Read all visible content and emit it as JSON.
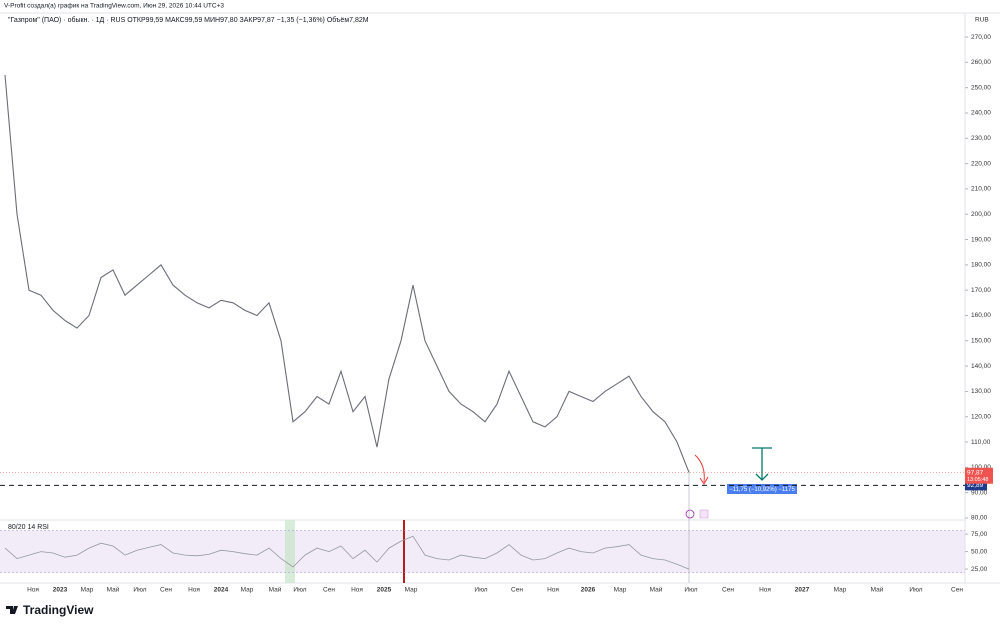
{
  "header": {
    "attribution": "V-Profit создал(а) график на TradingView.com, Июн 29, 2026 10:44 UTC+3"
  },
  "footer": {
    "brand": "TradingView"
  },
  "chart_data": [
    {
      "type": "line",
      "title": "\"Газпром\" (ПАО) · обыкн. · 1Д · RUS  ОТКР99,59  МАКС99,59  МИН97,80  ЗАКР97,87  −1,35 (−1,36%)  Объём7,82M",
      "unit": "RUB",
      "color": "#6a6d78",
      "values": [
        255,
        200,
        170,
        168,
        162,
        158,
        155,
        160,
        175,
        178,
        168,
        172,
        176,
        180,
        172,
        168,
        165,
        163,
        166,
        165,
        162,
        160,
        165,
        150,
        118,
        122,
        128,
        125,
        138,
        122,
        128,
        108,
        135,
        150,
        172,
        150,
        140,
        130,
        125,
        122,
        118,
        125,
        138,
        128,
        118,
        116,
        120,
        130,
        128,
        126,
        130,
        133,
        136,
        128,
        122,
        118,
        110,
        98
      ],
      "ylim": [
        79.2,
        279.5
      ],
      "yticks": [
        {
          "value": 80,
          "label": "80,00"
        },
        {
          "value": 90,
          "label": "90,00"
        },
        {
          "value": 100,
          "label": "100,00"
        },
        {
          "value": 110,
          "label": "110,00"
        },
        {
          "value": 120,
          "label": "120,00"
        },
        {
          "value": 130,
          "label": "130,00"
        },
        {
          "value": 140,
          "label": "140,00"
        },
        {
          "value": 150,
          "label": "150,00"
        },
        {
          "value": 160,
          "label": "160,00"
        },
        {
          "value": 170,
          "label": "170,00"
        },
        {
          "value": 180,
          "label": "180,00"
        },
        {
          "value": 190,
          "label": "190,00"
        },
        {
          "value": 200,
          "label": "200,00"
        },
        {
          "value": 210,
          "label": "210,00"
        },
        {
          "value": 220,
          "label": "220,00"
        },
        {
          "value": 230,
          "label": "230,00"
        },
        {
          "value": 240,
          "label": "240,00"
        },
        {
          "value": 250,
          "label": "250,00"
        },
        {
          "value": 260,
          "label": "260,00"
        },
        {
          "value": 270,
          "label": "270,00"
        }
      ],
      "last_price": {
        "value": 97.87,
        "label": "97,87"
      },
      "countdown": "13:05:48",
      "level": {
        "value": 92.89,
        "label": "92,89"
      },
      "measure_label": "−11,75 (−10,92%) −1175",
      "xtick_labels": [
        "Ноя",
        "2023",
        "Мар",
        "Май",
        "Июл",
        "Сен",
        "Ноя",
        "2024",
        "Мар",
        "Май",
        "Июл",
        "Сен",
        "Ноя",
        "2025",
        "Мар",
        "Июл",
        "Сен",
        "Ноя",
        "2026",
        "Мар",
        "Май",
        "Июл",
        "Сен",
        "Ноя",
        "2027",
        "Мар",
        "Май",
        "Июл",
        "Сен"
      ]
    },
    {
      "type": "line",
      "title": "80/20 14 RSI",
      "color": "#9598a1",
      "values": [
        55,
        40,
        45,
        50,
        48,
        42,
        45,
        55,
        62,
        58,
        45,
        52,
        56,
        60,
        48,
        45,
        44,
        46,
        52,
        50,
        47,
        45,
        55,
        40,
        28,
        45,
        55,
        50,
        58,
        40,
        52,
        35,
        55,
        65,
        72,
        45,
        40,
        38,
        45,
        42,
        40,
        48,
        60,
        45,
        38,
        40,
        48,
        55,
        50,
        48,
        55,
        57,
        60,
        45,
        40,
        38,
        32,
        25
      ],
      "band": [
        20,
        80
      ],
      "ylim": [
        0,
        100
      ],
      "yticks": [
        {
          "value": 25,
          "label": "25,00"
        },
        {
          "value": 50,
          "label": "50,00"
        },
        {
          "value": 75,
          "label": "75,00"
        }
      ]
    }
  ]
}
